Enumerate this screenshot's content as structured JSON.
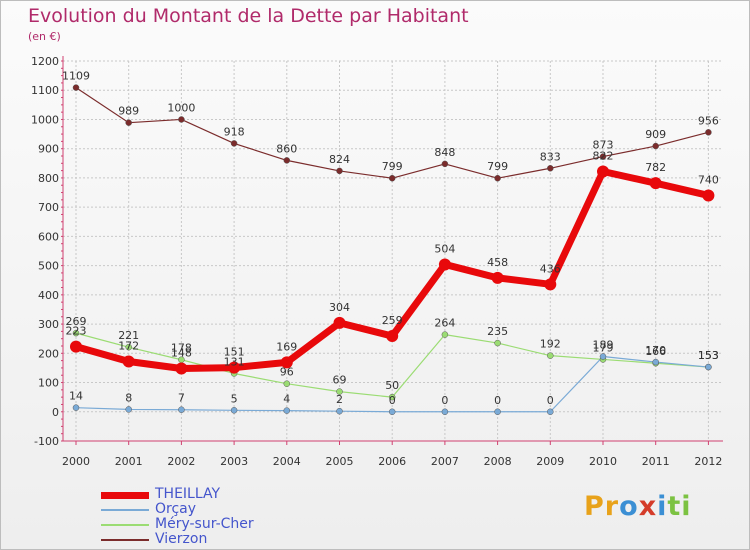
{
  "title": "Evolution du Montant de la Dette par Habitant",
  "subtitle": "(en €)",
  "brand": {
    "letters": [
      "P",
      "r",
      "o",
      "x",
      "i",
      "t",
      "i"
    ],
    "colors": [
      "#e8a21a",
      "#e8a21a",
      "#3b8fd4",
      "#d43c2a",
      "#3b8fd4",
      "#7cc242",
      "#7cc242"
    ]
  },
  "chart_data": {
    "type": "line",
    "title": "Evolution du Montant de la Dette par Habitant",
    "subtitle": "(en €)",
    "xlabel": "",
    "ylabel": "",
    "categories": [
      "2000",
      "2001",
      "2002",
      "2003",
      "2004",
      "2005",
      "2006",
      "2007",
      "2008",
      "2009",
      "2010",
      "2011",
      "2012"
    ],
    "ylim": [
      -100,
      1200
    ],
    "yticks": [
      -100,
      0,
      100,
      200,
      300,
      400,
      500,
      600,
      700,
      800,
      900,
      1000,
      1100,
      1200
    ],
    "grid": true,
    "legend": "bottom-left",
    "series": [
      {
        "name": "Vierzon",
        "color": "#7b2c2c",
        "width": 1.2,
        "marker": 3,
        "values": [
          1109,
          989,
          1000,
          918,
          860,
          824,
          799,
          848,
          799,
          833,
          873,
          909,
          956
        ]
      },
      {
        "name": "Méry-sur-Cher",
        "color": "#9bdc73",
        "width": 1.2,
        "marker": 3,
        "values": [
          269,
          221,
          178,
          131,
          96,
          69,
          50,
          264,
          235,
          192,
          179,
          166,
          153
        ]
      },
      {
        "name": "Orçay",
        "color": "#7aaad6",
        "width": 1.2,
        "marker": 3,
        "values": [
          14,
          8,
          7,
          5,
          4,
          2,
          0,
          0,
          0,
          0,
          189,
          170,
          153
        ]
      },
      {
        "name": "THEILLAY",
        "color": "#e8090b",
        "width": 7,
        "marker": 6,
        "values": [
          223,
          172,
          148,
          151,
          169,
          304,
          259,
          504,
          458,
          436,
          822,
          782,
          740
        ]
      }
    ],
    "legend_order": [
      "THEILLAY",
      "Orçay",
      "Méry-sur-Cher",
      "Vierzon"
    ]
  }
}
